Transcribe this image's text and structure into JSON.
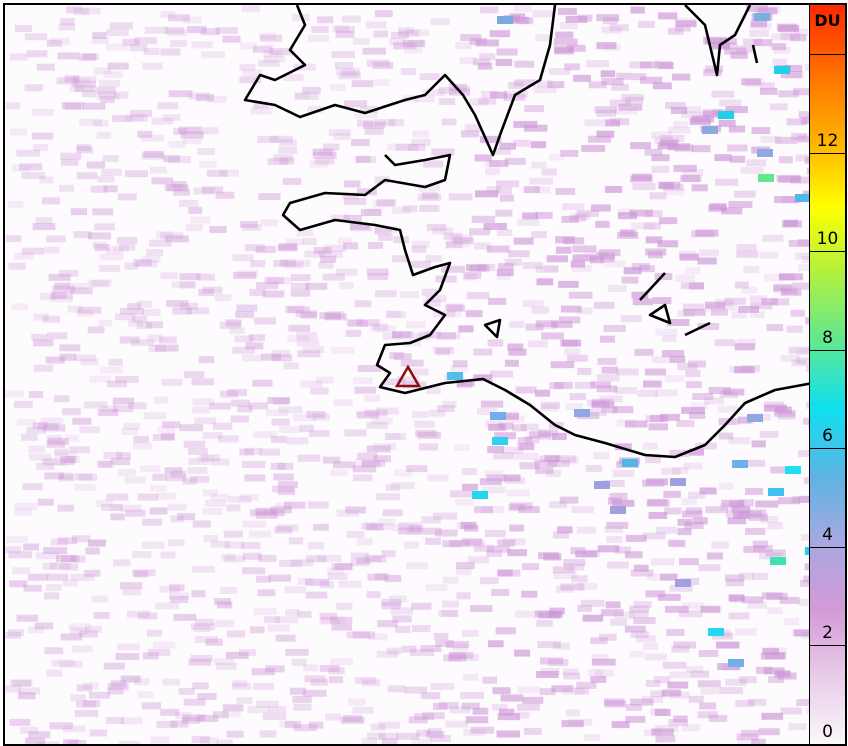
{
  "colorbar": {
    "unit": "DU",
    "min": 0,
    "max": 15,
    "ticks": [
      {
        "value": 0,
        "label": "0"
      },
      {
        "value": 2,
        "label": "2"
      },
      {
        "value": 4,
        "label": "4"
      },
      {
        "value": 6,
        "label": "6"
      },
      {
        "value": 8,
        "label": "8"
      },
      {
        "value": 10,
        "label": "10"
      },
      {
        "value": 12,
        "label": "12"
      },
      {
        "value": 14,
        "label": ""
      }
    ],
    "colors": [
      "#fbf7fb",
      "#e8cce8",
      "#d49ad8",
      "#a8a8e0",
      "#5cb4e4",
      "#10e0f0",
      "#60e890",
      "#b0f040",
      "#ffff00",
      "#ffb000",
      "#ff7000",
      "#ff2800"
    ]
  },
  "marker": {
    "type": "triangle",
    "color": "#8b1010",
    "label": "volcano"
  },
  "coastline_color": "#000000"
}
